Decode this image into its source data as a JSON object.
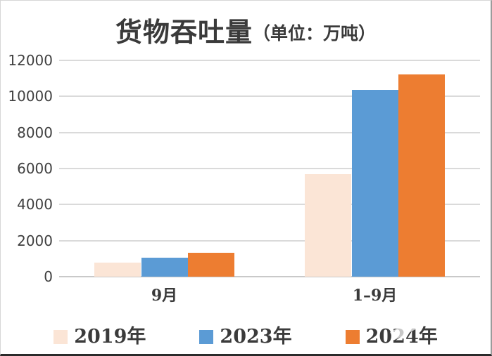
{
  "title": {
    "main": "货物吞吐量",
    "unit_suffix": "（单位：万吨）"
  },
  "chart_data": {
    "type": "bar",
    "title": "货物吞吐量（单位：万吨）",
    "categories": [
      "9月",
      "1–9月"
    ],
    "series": [
      {
        "name": "2019年",
        "color": "#fbe5d6",
        "values": [
          770,
          5700
        ]
      },
      {
        "name": "2023年",
        "color": "#5b9bd5",
        "values": [
          1070,
          10350
        ]
      },
      {
        "name": "2024年",
        "color": "#ed7d31",
        "values": [
          1320,
          11230
        ]
      }
    ],
    "ylim": [
      0,
      12000
    ],
    "yticks": [
      0,
      2000,
      4000,
      6000,
      8000,
      10000,
      12000
    ],
    "xlabel": "",
    "ylabel": "",
    "grid": "horizontal",
    "legend_position": "bottom",
    "gridline_color": "#dadada",
    "text_color": "#3a3a3a"
  }
}
